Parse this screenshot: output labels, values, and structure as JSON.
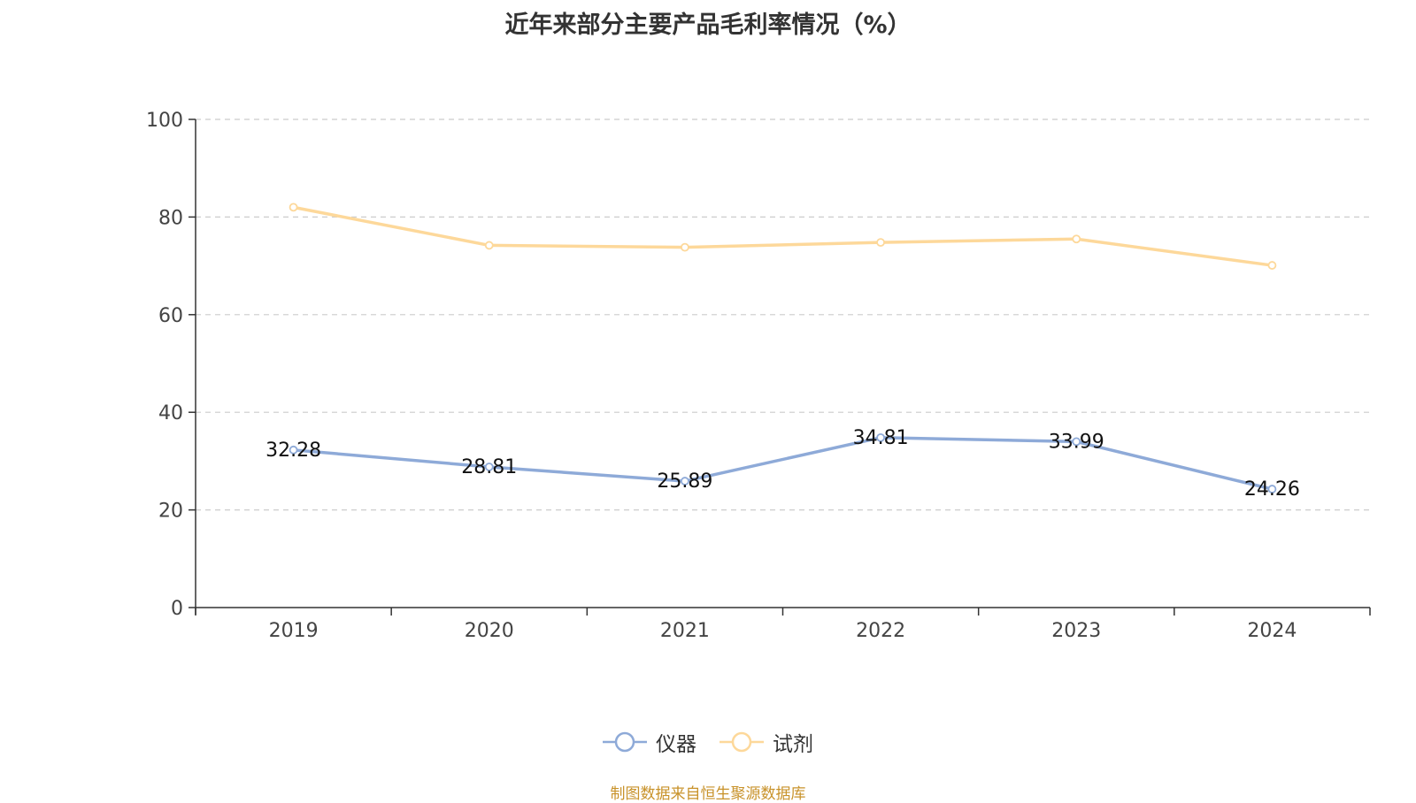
{
  "title": "近年来部分主要产品毛利率情况（%）",
  "source_note": "制图数据来自恒生聚源数据库",
  "colors": {
    "instrument": "#8eaad8",
    "reagent": "#fdd89a",
    "grid": "#cccccc",
    "axis": "#333333"
  },
  "chart_data": {
    "type": "line",
    "title": "近年来部分主要产品毛利率情况（%）",
    "categories": [
      "2019",
      "2020",
      "2021",
      "2022",
      "2023",
      "2024"
    ],
    "ylim": [
      0,
      100
    ],
    "yticks": [
      0,
      20,
      40,
      60,
      80,
      100
    ],
    "grid": true,
    "legend_position": "bottom-center",
    "series": [
      {
        "name": "仪器",
        "values": [
          32.28,
          28.81,
          25.89,
          34.81,
          33.99,
          24.26
        ],
        "labels": [
          "32.28",
          "28.81",
          "25.89",
          "34.81",
          "33.99",
          "24.26"
        ]
      },
      {
        "name": "试剂",
        "values": [
          82.0,
          74.2,
          73.8,
          74.8,
          75.5,
          70.1
        ]
      }
    ]
  }
}
